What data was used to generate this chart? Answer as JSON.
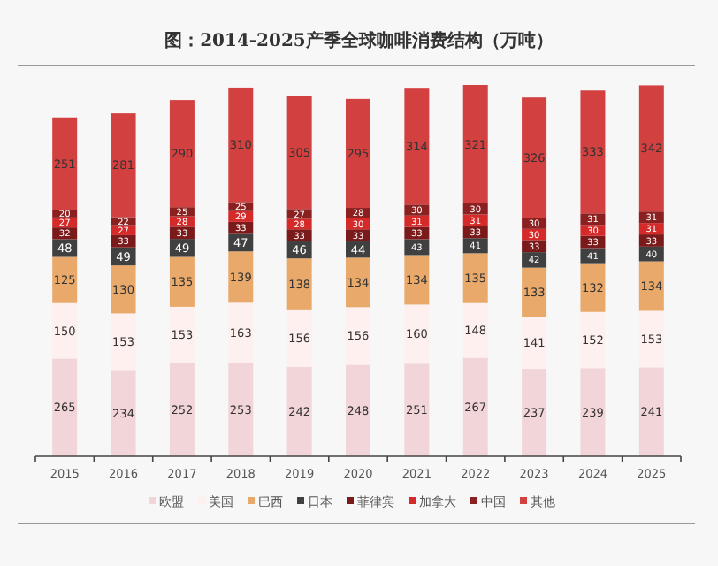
{
  "chart_data": {
    "type": "bar",
    "stacked": true,
    "title": "图：2014-2025产季全球咖啡消费结构（万吨）",
    "categories": [
      "2015",
      "2016",
      "2017",
      "2018",
      "2019",
      "2020",
      "2021",
      "2022",
      "2023",
      "2024",
      "2025"
    ],
    "data_labels": true,
    "legend": "bottom",
    "series": [
      {
        "name": "欧盟",
        "color": "#f2d5d8",
        "values": [
          265,
          234,
          252,
          253,
          242,
          248,
          251,
          267,
          237,
          239,
          241
        ]
      },
      {
        "name": "美国",
        "color": "#fdf0ee",
        "values": [
          150,
          153,
          153,
          163,
          156,
          156,
          160,
          148,
          141,
          152,
          153
        ]
      },
      {
        "name": "巴西",
        "color": "#e8a96b",
        "values": [
          125,
          130,
          135,
          139,
          138,
          134,
          134,
          135,
          133,
          132,
          134
        ]
      },
      {
        "name": "日本",
        "color": "#404040",
        "values": [
          48,
          49,
          49,
          47,
          46,
          44,
          43,
          41,
          42,
          41,
          40
        ]
      },
      {
        "name": "菲律宾",
        "color": "#7b1a1a",
        "values": [
          32,
          33,
          33,
          33,
          33,
          33,
          33,
          33,
          33,
          33,
          33
        ]
      },
      {
        "name": "加拿大",
        "color": "#d42a2a",
        "values": [
          27,
          27,
          28,
          29,
          28,
          30,
          31,
          31,
          30,
          30,
          31
        ]
      },
      {
        "name": "中国",
        "color": "#8b2020",
        "values": [
          20,
          22,
          25,
          25,
          27,
          28,
          30,
          30,
          30,
          31,
          31
        ]
      },
      {
        "name": "其他",
        "color": "#d24040",
        "values": [
          251,
          281,
          290,
          310,
          305,
          295,
          314,
          321,
          326,
          333,
          342
        ]
      }
    ]
  }
}
